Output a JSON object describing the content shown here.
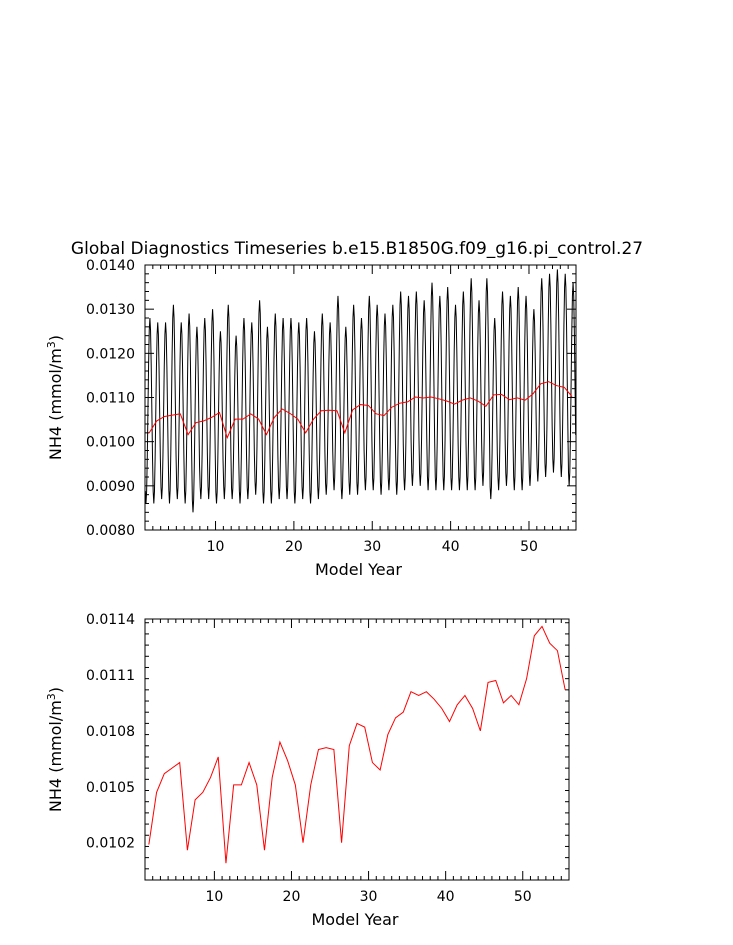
{
  "figure": {
    "title": "Global Diagnostics Timeseries b.e15.B1850G.f09_g16.pi_control.27"
  },
  "chart_data": [
    {
      "type": "line",
      "xlabel": "Model Year",
      "ylabel": "NH4 (mmol/m",
      "ylabel_sup": "3",
      "ylabel_end": ")",
      "xlim": [
        1,
        56
      ],
      "ylim": [
        0.008,
        0.014
      ],
      "xticks": [
        10,
        20,
        30,
        40,
        50
      ],
      "xtick_labels": [
        "10",
        "20",
        "30",
        "40",
        "50"
      ],
      "yticks": [
        0.008,
        0.009,
        0.01,
        0.011,
        0.012,
        0.013,
        0.014
      ],
      "ytick_labels": [
        "0.0080",
        "0.0090",
        "0.0100",
        "0.0110",
        "0.0120",
        "0.0130",
        "0.0140"
      ],
      "series": [
        {
          "color": "#000000",
          "kind": "monthly",
          "min_values": [
            0.0086,
            0.0086,
            0.0087,
            0.0086,
            0.0087,
            0.0086,
            0.0084,
            0.0087,
            0.0087,
            0.0086,
            0.0087,
            0.0087,
            0.0086,
            0.0087,
            0.0088,
            0.0086,
            0.0086,
            0.0087,
            0.0087,
            0.0086,
            0.0087,
            0.0086,
            0.0087,
            0.0088,
            0.0089,
            0.0087,
            0.0088,
            0.0088,
            0.0089,
            0.0089,
            0.0088,
            0.0089,
            0.0088,
            0.0089,
            0.009,
            0.009,
            0.0089,
            0.0089,
            0.0089,
            0.0089,
            0.0089,
            0.0089,
            0.0089,
            0.009,
            0.0087,
            0.0089,
            0.009,
            0.0089,
            0.0089,
            0.009,
            0.0091,
            0.0092,
            0.0093,
            0.0092,
            0.009
          ],
          "max_values": [
            0.0128,
            0.0127,
            0.0127,
            0.0131,
            0.0127,
            0.0129,
            0.0126,
            0.0128,
            0.013,
            0.0125,
            0.0131,
            0.0124,
            0.0128,
            0.0127,
            0.0132,
            0.0126,
            0.0129,
            0.0128,
            0.0128,
            0.0127,
            0.0128,
            0.0125,
            0.0129,
            0.0127,
            0.0133,
            0.0126,
            0.0131,
            0.0128,
            0.0133,
            0.0131,
            0.0129,
            0.0131,
            0.0134,
            0.0133,
            0.0134,
            0.0132,
            0.0136,
            0.0133,
            0.0135,
            0.0131,
            0.0134,
            0.0137,
            0.0132,
            0.0137,
            0.0128,
            0.0134,
            0.0133,
            0.0135,
            0.0133,
            0.013,
            0.0137,
            0.0138,
            0.0139,
            0.0138,
            0.0136
          ]
        },
        {
          "color": "#ff0000",
          "kind": "annual",
          "x": [
            1.5,
            2.5,
            3.5,
            4.5,
            5.5,
            6.5,
            7.5,
            8.5,
            9.5,
            10.5,
            11.5,
            12.5,
            13.5,
            14.5,
            15.5,
            16.5,
            17.5,
            18.5,
            19.5,
            20.5,
            21.5,
            22.5,
            23.5,
            24.5,
            25.5,
            26.5,
            27.5,
            28.5,
            29.5,
            30.5,
            31.5,
            32.5,
            33.5,
            34.5,
            35.5,
            36.5,
            37.5,
            38.5,
            39.5,
            40.5,
            41.5,
            42.5,
            43.5,
            44.5,
            45.5,
            46.5,
            47.5,
            48.5,
            49.5,
            50.5,
            51.5,
            52.5,
            53.5,
            54.5,
            55.5
          ],
          "values": [
            0.01019,
            0.01047,
            0.01057,
            0.0106,
            0.01063,
            0.01016,
            0.01043,
            0.01047,
            0.01055,
            0.01066,
            0.01009,
            0.01051,
            0.01051,
            0.01063,
            0.01051,
            0.01016,
            0.01055,
            0.01074,
            0.01064,
            0.01051,
            0.0102,
            0.01051,
            0.0107,
            0.01071,
            0.0107,
            0.0102,
            0.01072,
            0.01084,
            0.01082,
            0.01063,
            0.01059,
            0.01078,
            0.01087,
            0.0109,
            0.01101,
            0.01099,
            0.01101,
            0.01097,
            0.01092,
            0.01085,
            0.01094,
            0.01099,
            0.01092,
            0.0108,
            0.01106,
            0.01107,
            0.01095,
            0.01099,
            0.01094,
            0.01108,
            0.01131,
            0.01136,
            0.01127,
            0.01123,
            0.01102
          ]
        }
      ]
    },
    {
      "type": "line",
      "xlabel": "Model Year",
      "ylabel": "NH4 (mmol/m",
      "ylabel_sup": "3",
      "ylabel_end": ")",
      "xlim": [
        1,
        56
      ],
      "ylim": [
        0.01,
        0.0114
      ],
      "xticks": [
        10,
        20,
        30,
        40,
        50
      ],
      "xtick_labels": [
        "10",
        "20",
        "30",
        "40",
        "50"
      ],
      "yticks": [
        0.0102,
        0.0105,
        0.0108,
        0.0111,
        0.0114
      ],
      "ytick_labels": [
        "0.0102",
        "0.0105",
        "0.0108",
        "0.0111",
        "0.0114"
      ],
      "series": [
        {
          "color": "#ff0000",
          "kind": "annual",
          "x": [
            1.5,
            2.5,
            3.5,
            4.5,
            5.5,
            6.5,
            7.5,
            8.5,
            9.5,
            10.5,
            11.5,
            12.5,
            13.5,
            14.5,
            15.5,
            16.5,
            17.5,
            18.5,
            19.5,
            20.5,
            21.5,
            22.5,
            23.5,
            24.5,
            25.5,
            26.5,
            27.5,
            28.5,
            29.5,
            30.5,
            31.5,
            32.5,
            33.5,
            34.5,
            35.5,
            36.5,
            37.5,
            38.5,
            39.5,
            40.5,
            41.5,
            42.5,
            43.5,
            44.5,
            45.5,
            46.5,
            47.5,
            48.5,
            49.5,
            50.5,
            51.5,
            52.5,
            53.5,
            54.5,
            55.5
          ],
          "values": [
            0.01019,
            0.01047,
            0.01057,
            0.0106,
            0.01063,
            0.01016,
            0.01043,
            0.01047,
            0.01055,
            0.01066,
            0.01009,
            0.01051,
            0.01051,
            0.01063,
            0.01051,
            0.01016,
            0.01055,
            0.01074,
            0.01064,
            0.01051,
            0.0102,
            0.01051,
            0.0107,
            0.01071,
            0.0107,
            0.0102,
            0.01072,
            0.01084,
            0.01082,
            0.01063,
            0.01059,
            0.01078,
            0.01087,
            0.0109,
            0.01101,
            0.01099,
            0.01101,
            0.01097,
            0.01092,
            0.01085,
            0.01094,
            0.01099,
            0.01092,
            0.0108,
            0.01106,
            0.01107,
            0.01095,
            0.01099,
            0.01094,
            0.01108,
            0.01131,
            0.01136,
            0.01127,
            0.01123,
            0.01102
          ]
        }
      ]
    }
  ]
}
